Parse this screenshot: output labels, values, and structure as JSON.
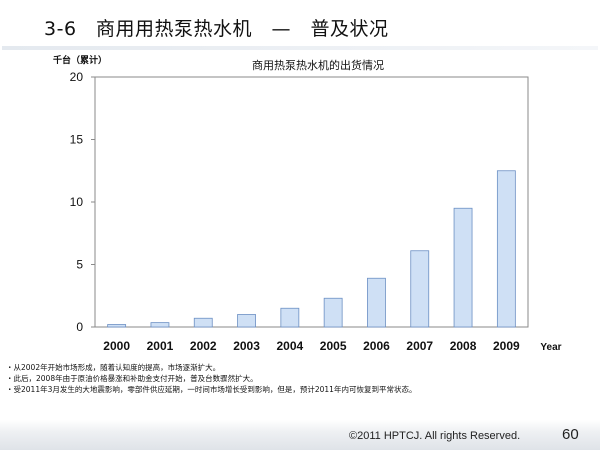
{
  "slide": {
    "title": "3-6　商用用热泵热水机　—　普及状况",
    "page_number": "60",
    "copyright": "©2011 HPTCJ. All rights Reserved."
  },
  "notes": [
    "・从2002年开始市场形成，随着认知度的提高，市场逐渐扩大。",
    "・此后，2008年由于原油价格暴涨和补助金支付开始，普及台数骤然扩大。",
    "・受2011年3月发生的大地震影响，零部件供应延期，一时间市场增长受到影响，但是，预计2011年内可恢复到平常状态。"
  ],
  "chart_data": {
    "type": "bar",
    "title": "商用热泵热水机的出货情况",
    "ylabel": "千台（累计）",
    "xlabel": "Year",
    "categories": [
      "2000",
      "2001",
      "2002",
      "2003",
      "2004",
      "2005",
      "2006",
      "2007",
      "2008",
      "2009"
    ],
    "values": [
      0.2,
      0.35,
      0.7,
      1.0,
      1.5,
      2.3,
      3.9,
      6.1,
      9.5,
      12.5
    ],
    "ylim": [
      0,
      20
    ],
    "yticks": [
      "0",
      "5",
      "10",
      "15",
      "20"
    ],
    "grid": false,
    "legend": "none",
    "bar_fill": "#cfe0f5",
    "bar_stroke": "#6c8fc4"
  }
}
